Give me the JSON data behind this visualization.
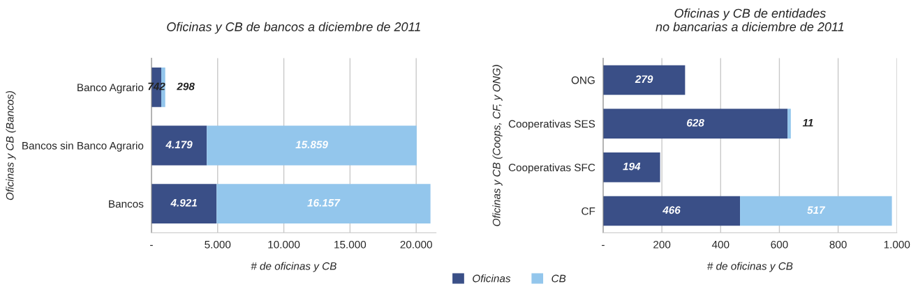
{
  "chart_data": [
    {
      "type": "bar",
      "orientation": "horizontal",
      "stacked": true,
      "title": "Oficinas y CB de bancos a diciembre de 2011",
      "xlabel": "# de oficinas y CB",
      "ylabel": "Oficinas y CB (Bancos)",
      "categories": [
        "Banco Agrario",
        "Bancos sin Banco Agrario",
        "Bancos"
      ],
      "series": [
        {
          "name": "Oficinas",
          "color": "#3a4f87",
          "values": [
            742,
            4179,
            4921
          ],
          "value_labels": [
            "742",
            "4.179",
            "4.921"
          ]
        },
        {
          "name": "CB",
          "color": "#93c6ec",
          "values": [
            298,
            15859,
            16157
          ],
          "value_labels": [
            "298",
            "15.859",
            "16.157"
          ]
        }
      ],
      "xlim": [
        0,
        21500
      ],
      "xticks": [
        {
          "value": 0,
          "label": "-"
        },
        {
          "value": 5000,
          "label": "5.000"
        },
        {
          "value": 10000,
          "label": "10.000"
        },
        {
          "value": 15000,
          "label": "15.000"
        },
        {
          "value": 20000,
          "label": "20.000"
        }
      ],
      "grid": "x",
      "legend": "bottom"
    },
    {
      "type": "bar",
      "orientation": "horizontal",
      "stacked": true,
      "title": "Oficinas y CB de entidades\nno bancarias a diciembre de 2011",
      "xlabel": "# de oficinas y CB",
      "ylabel": "Oficinas y CB (Coops, CF, y ONG)",
      "categories": [
        "ONG",
        "Cooperativas SES",
        "Cooperativas SFC",
        "CF"
      ],
      "series": [
        {
          "name": "Oficinas",
          "color": "#3a4f87",
          "values": [
            279,
            628,
            194,
            466
          ],
          "value_labels": [
            "279",
            "628",
            "194",
            "466"
          ]
        },
        {
          "name": "CB",
          "color": "#93c6ec",
          "values": [
            null,
            11,
            null,
            517
          ],
          "value_labels": [
            null,
            "11",
            null,
            "517"
          ]
        }
      ],
      "xlim": [
        0,
        1000
      ],
      "xticks": [
        {
          "value": 0,
          "label": "-"
        },
        {
          "value": 200,
          "label": "200"
        },
        {
          "value": 400,
          "label": "400"
        },
        {
          "value": 600,
          "label": "600"
        },
        {
          "value": 800,
          "label": "800"
        },
        {
          "value": 1000,
          "label": "1.000"
        }
      ],
      "grid": "x",
      "legend": "bottom"
    }
  ]
}
